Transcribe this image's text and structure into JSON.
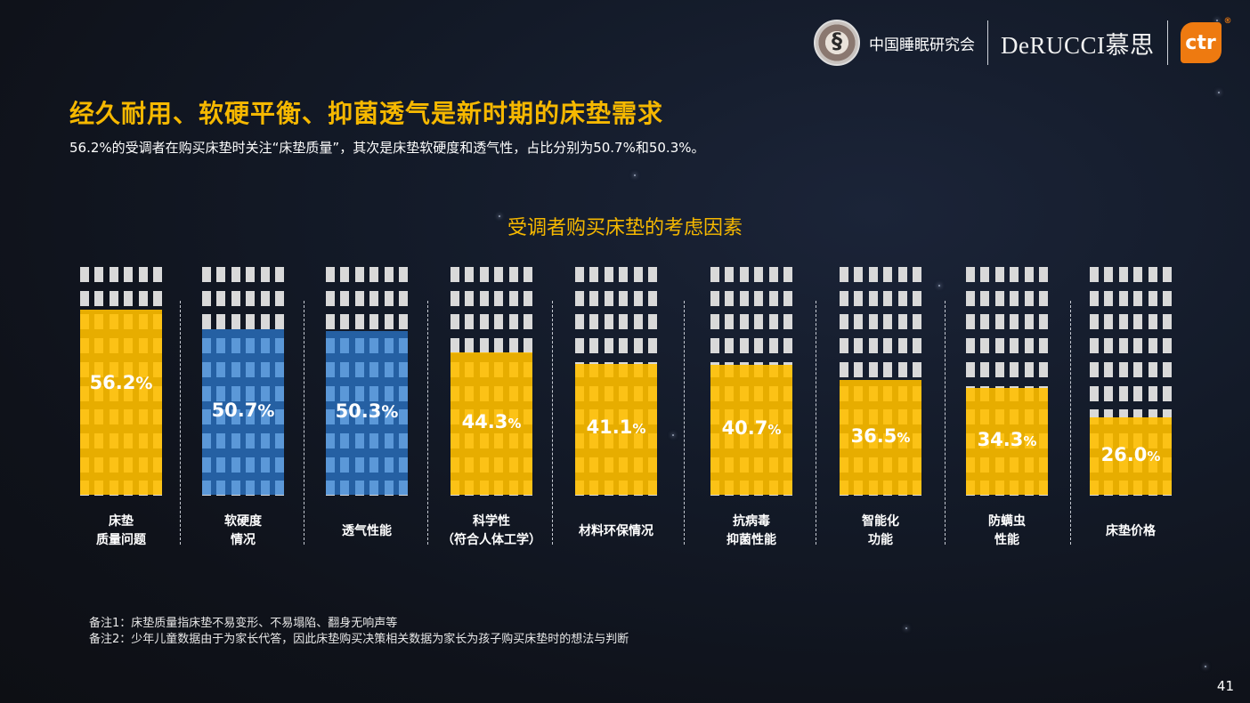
{
  "header": {
    "org_name": "中国睡眠研究会",
    "brand_name": "DeRUCCI慕思",
    "ctr_logo": "ctr",
    "reg_mark": "®",
    "seal_icon": "sleep-research-seal-icon"
  },
  "title": "经久耐用、软硬平衡、抑菌透气是新时期的床垫需求",
  "subtitle": "56.2%的受调者在购买床垫时关注“床垫质量”，其次是床垫软硬度和透气性，占比分别为50.7%和50.3%。",
  "chart_data": {
    "type": "bar",
    "title": "受调者购买床垫的考虑因素",
    "xlabel": "",
    "ylabel": "",
    "categories": [
      "床垫\n质量问题",
      "软硬度\n情况",
      "透气性能",
      "科学性\n（符合人体工学）",
      "材料环保情况",
      "抗病毒\n抑菌性能",
      "智能化\n功能",
      "防螨虫\n性能",
      "床垫价格"
    ],
    "values": [
      56.2,
      50.7,
      50.3,
      44.3,
      41.1,
      40.7,
      36.5,
      34.3,
      26.0
    ],
    "value_labels": [
      "56.2",
      "50.7",
      "50.3",
      "44.3",
      "41.1",
      "40.7",
      "36.5",
      "34.3",
      "26.0"
    ],
    "unit": "%",
    "highlight": [
      false,
      true,
      true,
      false,
      false,
      false,
      false,
      false,
      false
    ],
    "colors": {
      "default": "#e7ad00",
      "highlight": "#2560a3",
      "background_window": "#d9d9d9"
    },
    "grid": false,
    "legend": "none"
  },
  "notes": [
    "备注1：床垫质量指床垫不易变形、不易塌陷、翻身无响声等",
    "备注2：少年儿童数据由于为家长代答，因此床垫购买决策相关数据为家长为孩子购买床垫时的想法与判断"
  ],
  "page_number": "41"
}
